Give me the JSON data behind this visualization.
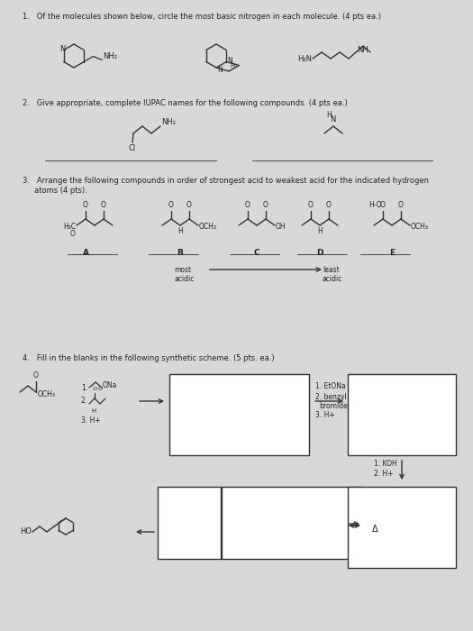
{
  "bg_color": "#d8d8d8",
  "text_color": "#222222",
  "q1_text": "1.   Of the molecules shown below, circle the most basic nitrogen in each molecule. (4 pts ea.)",
  "q2_text": "2.   Give appropriate, complete IUPAC names for the following compounds. (4 pts ea.)",
  "q3_text_1": "3.   Arrange the following compounds in order of strongest acid to weakest acid for the indicated hydrogen",
  "q3_text_2": "     atoms (4 pts).",
  "q4_text": "4.   Fill in the blanks in the following synthetic scheme. (5 pts. ea.)",
  "reagents1_line1": "1.      ONa",
  "reagents1_line2": "2.",
  "reagents1_line3": "3. H+",
  "reagents2_line1": "1. EtONa",
  "reagents2_line2": "2. benzyl",
  "reagents2_line3": "   bromide",
  "reagents2_line4": "3. H+",
  "reagents3_line1": "1. KOH",
  "reagents3_line2": "2. H+",
  "label_A": "A",
  "label_B": "B",
  "label_C": "C",
  "label_D": "D",
  "label_E": "E",
  "most_acidic": "most\nacidic",
  "least_acidic": "least\nacidic"
}
